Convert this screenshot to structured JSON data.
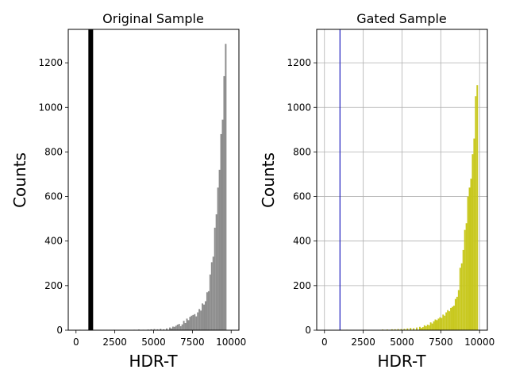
{
  "chart_data": [
    {
      "type": "bar",
      "title": "Original Sample",
      "xlabel": "HDR-T",
      "ylabel": "Counts",
      "xlim": [
        -500,
        10500
      ],
      "ylim": [
        0,
        1350
      ],
      "xticks": [
        "0",
        "2500",
        "5000",
        "7500",
        "10000"
      ],
      "yticks": [
        "0",
        "200",
        "400",
        "600",
        "800",
        "1000",
        "1200"
      ],
      "grid": false,
      "bar_color": "#8c8c8c",
      "marker_line": {
        "x": 950,
        "color": "#000000",
        "style": "thick band"
      },
      "bin_width": 100,
      "bins_x": [
        200,
        2400,
        3700,
        4000,
        4300,
        4600,
        4800,
        5000,
        5200,
        5400,
        5600,
        5800,
        6000,
        6100,
        6200,
        6300,
        6400,
        6500,
        6600,
        6700,
        6800,
        6900,
        7000,
        7100,
        7200,
        7300,
        7400,
        7500,
        7600,
        7700,
        7800,
        7900,
        8000,
        8100,
        8200,
        8300,
        8400,
        8500,
        8600,
        8700,
        8800,
        8900,
        9000,
        9100,
        9200,
        9300,
        9400,
        9500,
        9600,
        9700,
        9800,
        9900
      ],
      "values": [
        2,
        2,
        2,
        3,
        2,
        3,
        4,
        5,
        4,
        6,
        4,
        8,
        12,
        8,
        16,
        15,
        20,
        25,
        28,
        18,
        26,
        42,
        32,
        52,
        45,
        60,
        65,
        68,
        72,
        62,
        80,
        95,
        88,
        120,
        115,
        130,
        170,
        175,
        250,
        305,
        330,
        460,
        520,
        640,
        720,
        880,
        945,
        1140,
        1285,
        0,
        0,
        0
      ]
    },
    {
      "type": "bar",
      "title": "Gated Sample",
      "xlabel": "HDR-T",
      "ylabel": "Counts",
      "xlim": [
        -500,
        10500
      ],
      "ylim": [
        0,
        1350
      ],
      "xticks": [
        "0",
        "2500",
        "5000",
        "7500",
        "10000"
      ],
      "yticks": [
        "0",
        "200",
        "400",
        "600",
        "800",
        "1000",
        "1200"
      ],
      "grid": true,
      "bar_color": "#c8c81e",
      "marker_line": {
        "x": 1000,
        "color": "#1f1fbf",
        "style": "thin line"
      },
      "bin_width": 100,
      "bins_x": [
        1400,
        2600,
        3700,
        4000,
        4300,
        4500,
        4700,
        4900,
        5100,
        5300,
        5500,
        5700,
        5900,
        6100,
        6200,
        6300,
        6400,
        6500,
        6600,
        6700,
        6800,
        6900,
        7000,
        7100,
        7200,
        7300,
        7400,
        7500,
        7600,
        7700,
        7800,
        7900,
        8000,
        8100,
        8200,
        8300,
        8400,
        8500,
        8600,
        8700,
        8800,
        8900,
        9000,
        9100,
        9200,
        9300,
        9400,
        9500,
        9600,
        9700,
        9800,
        9900
      ],
      "values": [
        2,
        2,
        3,
        3,
        4,
        4,
        5,
        5,
        6,
        8,
        10,
        9,
        12,
        15,
        10,
        14,
        22,
        18,
        25,
        22,
        35,
        30,
        40,
        48,
        45,
        52,
        58,
        55,
        70,
        65,
        80,
        90,
        85,
        100,
        105,
        110,
        140,
        150,
        180,
        280,
        300,
        360,
        450,
        480,
        600,
        640,
        680,
        790,
        860,
        1050,
        1100,
        0
      ]
    }
  ]
}
